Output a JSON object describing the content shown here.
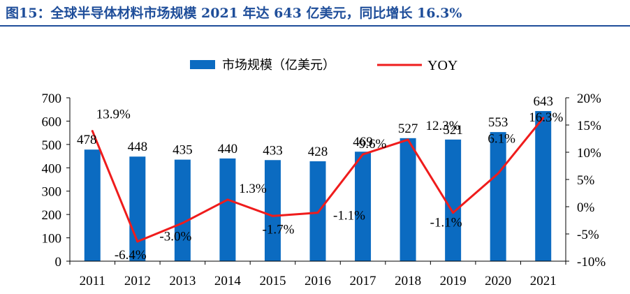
{
  "figure_title": "图15：全球半导体材料市场规模 2021 年达 643 亿美元，同比增长 16.3%",
  "colors": {
    "title": "#1f4e9a",
    "bar": "#0b6bc1",
    "line": "#ef1c1c",
    "axis": "#000000"
  },
  "chart_data": {
    "type": "bar",
    "categories": [
      "2011",
      "2012",
      "2013",
      "2014",
      "2015",
      "2016",
      "2017",
      "2018",
      "2019",
      "2020",
      "2021"
    ],
    "series": [
      {
        "name": "市场规模（亿美元）",
        "type": "bar",
        "axis": "left",
        "values": [
          478,
          448,
          435,
          440,
          433,
          428,
          469,
          527,
          521,
          553,
          643
        ],
        "labels": [
          "478",
          "448",
          "435",
          "440",
          "433",
          "428",
          "469",
          "527",
          "521",
          "553",
          "643"
        ]
      },
      {
        "name": "YOY",
        "type": "line",
        "axis": "right",
        "values": [
          13.9,
          -6.4,
          -3.0,
          1.3,
          -1.7,
          -1.1,
          9.6,
          12.3,
          -1.1,
          6.1,
          16.3
        ],
        "labels": [
          "13.9%",
          "-6.4%",
          "-3.0%",
          "1.3%",
          "-1.7%",
          "-1.1%",
          "9.6%",
          "12.3%",
          "-1.1%",
          "6.1%",
          "16.3%"
        ]
      }
    ],
    "ylim_left": [
      0,
      700
    ],
    "yticks_left": [
      "0",
      "100",
      "200",
      "300",
      "400",
      "500",
      "600",
      "700"
    ],
    "ylim_right": [
      -10,
      20
    ],
    "yticks_right": [
      "-10%",
      "-5%",
      "0%",
      "5%",
      "10%",
      "15%",
      "20%"
    ],
    "legend": "top-center",
    "grid": false
  }
}
